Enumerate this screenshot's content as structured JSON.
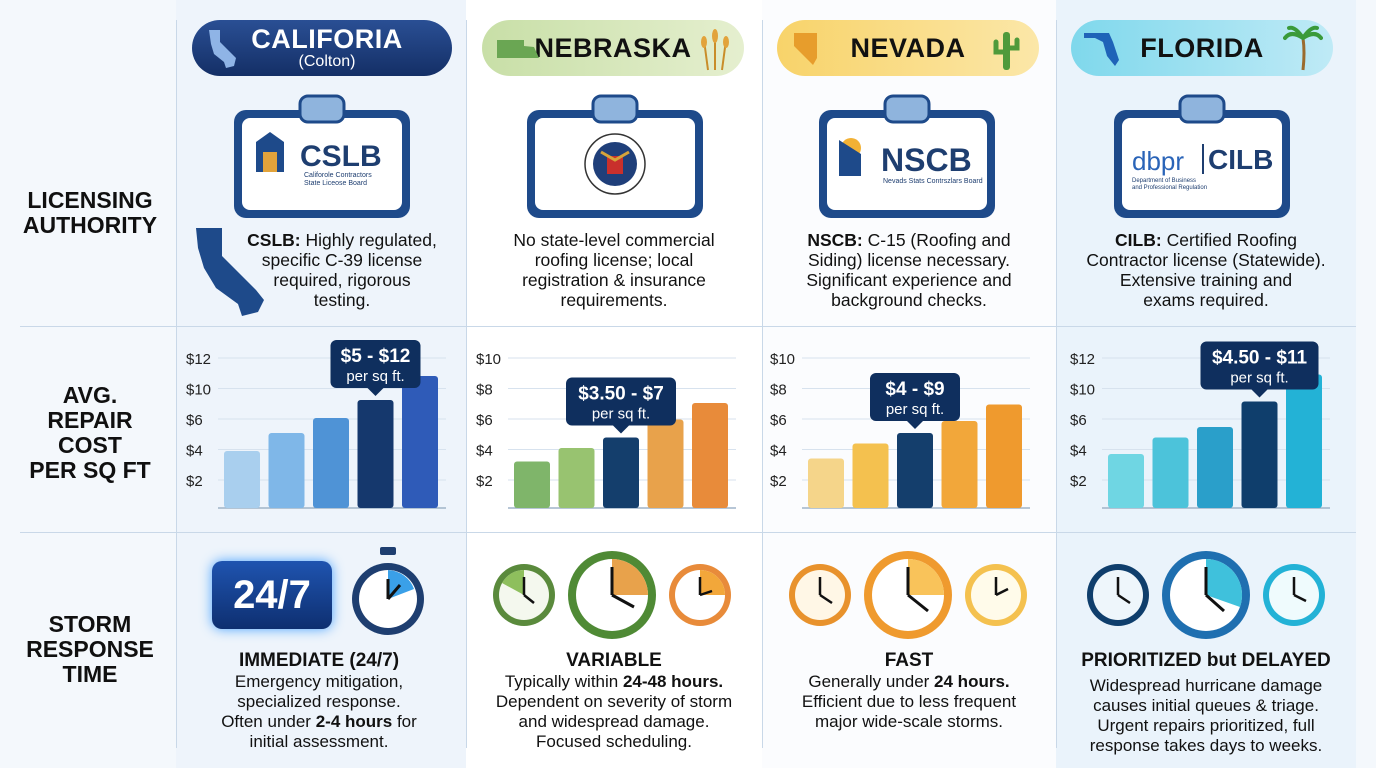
{
  "row_labels": {
    "licensing": [
      "LICENSING",
      "AUTHORITY"
    ],
    "cost": [
      "AVG.",
      "REPAIR",
      "COST",
      "PER SQ FT"
    ],
    "storm": [
      "STORM",
      "RESPONSE",
      "TIME"
    ]
  },
  "states": [
    {
      "name": "CALIFORIA",
      "subtitle": "(Colton)",
      "logo_main": "CSLB",
      "logo_small": [
        "Califorole Contractors",
        "State Liceose Board"
      ],
      "desc_bold": "CSLB:",
      "desc_lines": [
        "Highly regulated,",
        "specific C-39 license",
        "required, rigorous",
        "testing."
      ],
      "callout": [
        "$5 - $12",
        "per sq ft."
      ],
      "ticks": [
        "$12",
        "$10",
        "$6",
        "$4",
        "$2"
      ],
      "bars": [
        3.8,
        5.0,
        6.0,
        7.2,
        8.8
      ],
      "response_big": "24/7",
      "response_title": "IMMEDIATE (24/7)",
      "response_lines": [
        [
          "Emergency mitigation,"
        ],
        [
          "specialized response."
        ],
        [
          "Often under ",
          "2-4 hours",
          " for"
        ],
        [
          "initial assessment."
        ]
      ]
    },
    {
      "name": "NEBRASKA",
      "subtitle": "",
      "logo_main": "",
      "logo_small": [],
      "desc_bold": "",
      "desc_lines": [
        "No state-level commercial",
        "roofing license; local",
        "registration & insurance",
        "requirements."
      ],
      "callout": [
        "$3.50 - $7",
        "per sq ft."
      ],
      "ticks": [
        "$10",
        "$8",
        "$6",
        "$4",
        "$2"
      ],
      "bars": [
        3.1,
        4.0,
        4.7,
        5.9,
        7.0
      ],
      "response_big": "",
      "response_title": "VARIABLE",
      "response_lines": [
        [
          "Typically within ",
          "24-48 hours."
        ],
        [
          "Dependent on severity of storm"
        ],
        [
          "and widespread damage."
        ],
        [
          "Focused scheduling."
        ]
      ]
    },
    {
      "name": "NEVADA",
      "subtitle": "",
      "logo_main": "NSCB",
      "logo_small": [
        "Nevads Stats Contrszlars Board"
      ],
      "desc_bold": "NSCB:",
      "desc_lines": [
        "C-15 (Roofing and",
        "Siding) license necessary.",
        "Significant experience and",
        "background checks."
      ],
      "callout": [
        "$4 - $9",
        "per sq ft."
      ],
      "ticks": [
        "$10",
        "$8",
        "$6",
        "$4",
        "$2"
      ],
      "bars": [
        3.3,
        4.3,
        5.0,
        5.8,
        6.9
      ],
      "response_big": "",
      "response_title": "FAST",
      "response_lines": [
        [
          "Generally under ",
          "24 hours."
        ],
        [
          "Efficient due to less frequent"
        ],
        [
          "major wide-scale storms."
        ]
      ]
    },
    {
      "name": "FLORIDA",
      "subtitle": "",
      "logo_main": "CILB",
      "logo_brand": "dbpr",
      "logo_small": [
        "Department of Business",
        "and Professional Regulation"
      ],
      "desc_bold": "CILB:",
      "desc_lines": [
        "Certified Roofing",
        "Contractor license (Statewide).",
        "Extensive training and",
        "exams required."
      ],
      "callout": [
        "$4.50 - $11",
        "per sq ft."
      ],
      "ticks": [
        "$12",
        "$10",
        "$6",
        "$4",
        "$2"
      ],
      "bars": [
        3.6,
        4.7,
        5.4,
        7.1,
        8.9
      ],
      "response_big": "",
      "response_title": "PRIORITIZED but DELAYED",
      "response_lines": [
        [
          "Widespread hurricane damage"
        ],
        [
          "causes initial queues & triage."
        ],
        [
          "Urgent repairs prioritized, full"
        ],
        [
          "response takes days to weeks."
        ]
      ]
    }
  ],
  "colors": {
    "california": [
      "#a9cfee",
      "#7fb7e8",
      "#4f93d6",
      "#15386d",
      "#2f5bb8"
    ],
    "nebraska": [
      "#7fb56a",
      "#98c370",
      "#143e6c",
      "#e8a24b",
      "#e88b3a"
    ],
    "nevada": [
      "#f5d58a",
      "#f4c14f",
      "#143e6c",
      "#f2a73a",
      "#ef9a2e"
    ],
    "florida": [
      "#6fd6e3",
      "#4cc3da",
      "#2a9fca",
      "#0f3e6c",
      "#23b2d6"
    ]
  }
}
